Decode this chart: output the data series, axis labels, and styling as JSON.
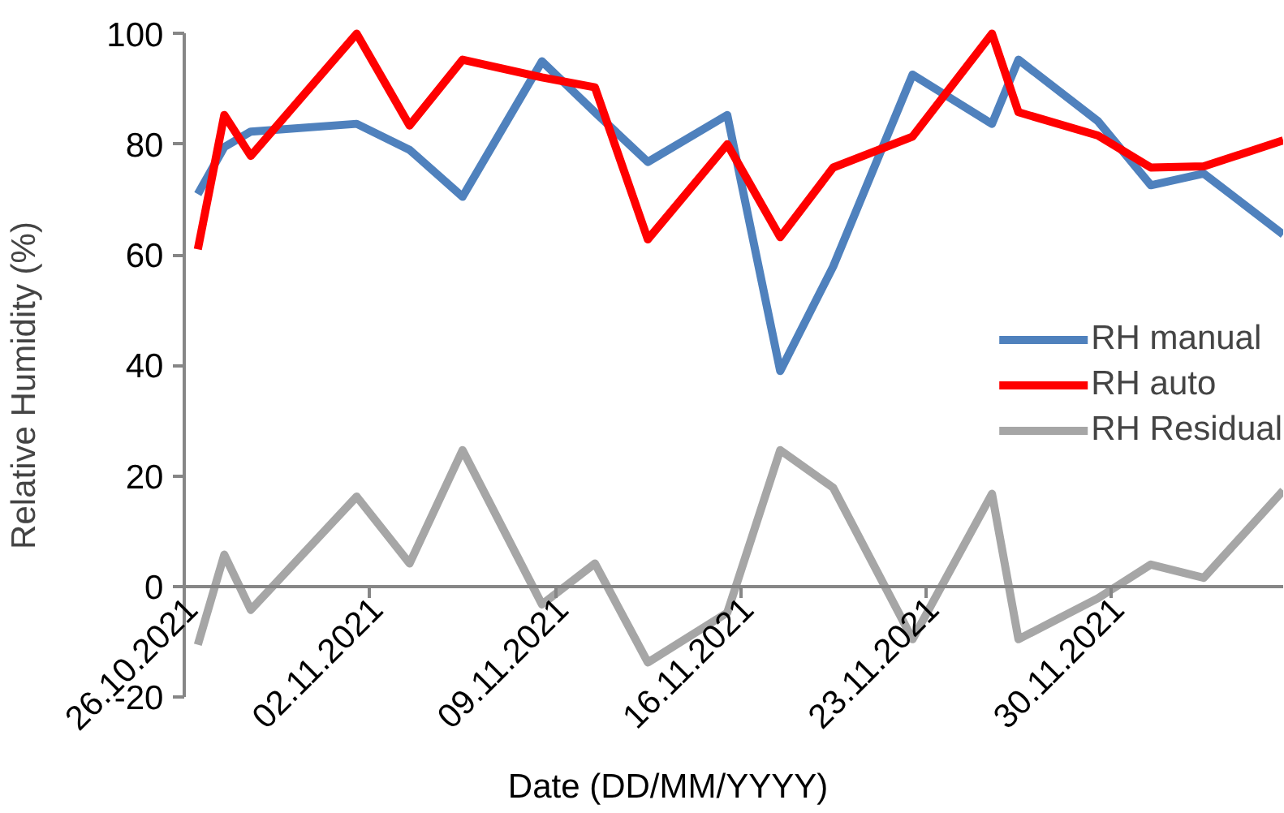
{
  "chart_data": {
    "type": "line",
    "xlabel": "Date (DD/MM/YYYY)",
    "ylabel": "Relative Humidity (%)",
    "x": [
      "2021-10-26T12:00",
      "2021-10-27T12:00",
      "2021-10-28T12:00",
      "2021-11-01T12:00",
      "2021-11-03T12:00",
      "2021-11-05T12:00",
      "2021-11-08T12:00",
      "2021-11-10T12:00",
      "2021-11-12T12:00",
      "2021-11-15T12:00",
      "2021-11-17T12:00",
      "2021-11-19T12:00",
      "2021-11-22T12:00",
      "2021-11-25T12:00",
      "2021-11-26T12:00",
      "2021-11-29T12:00",
      "2021-12-01T12:00",
      "2021-12-03T12:00",
      "2021-12-06T12:00"
    ],
    "series": [
      {
        "name": "RH manual",
        "color": "#4f81bd",
        "values": [
          71,
          79.5,
          82.3,
          83.7,
          79,
          70.5,
          95,
          85.8,
          76.8,
          85.3,
          39,
          57.9,
          92.6,
          83.7,
          95.3,
          84.2,
          72.6,
          74.7,
          63.7
        ]
      },
      {
        "name": "RH auto",
        "color": "#ff0000",
        "values": [
          61,
          85.3,
          77.9,
          100,
          83.4,
          95.3,
          92.1,
          90.3,
          62.8,
          80,
          63.2,
          75.8,
          81.4,
          100,
          85.8,
          81.6,
          75.8,
          76,
          80.7
        ]
      },
      {
        "name": "RH Residual",
        "color": "#a6a6a6",
        "values": [
          -10.5,
          5.8,
          -4.2,
          16.3,
          4.2,
          24.7,
          -3.2,
          4.2,
          -13.7,
          -4.7,
          24.7,
          17.9,
          -9.5,
          16.8,
          -9.5,
          -2.1,
          4,
          1.6,
          17.4
        ]
      }
    ],
    "xlim": [
      "2021-10-26",
      "2021-12-06T12:00"
    ],
    "xticks": [
      {
        "value": "2021-10-26",
        "label": "26.10.2021"
      },
      {
        "value": "2021-11-02",
        "label": "02.11.2021"
      },
      {
        "value": "2021-11-09",
        "label": "09.11.2021"
      },
      {
        "value": "2021-11-16",
        "label": "16.11.2021"
      },
      {
        "value": "2021-11-23",
        "label": "23.11.2021"
      },
      {
        "value": "2021-11-30",
        "label": "30.11.2021"
      }
    ],
    "ylim": [
      -20,
      100
    ],
    "yticks": [
      -20,
      0,
      20,
      40,
      60,
      80,
      100
    ],
    "grid": false,
    "legend": "right",
    "marker": "none",
    "line_style": "solid"
  }
}
